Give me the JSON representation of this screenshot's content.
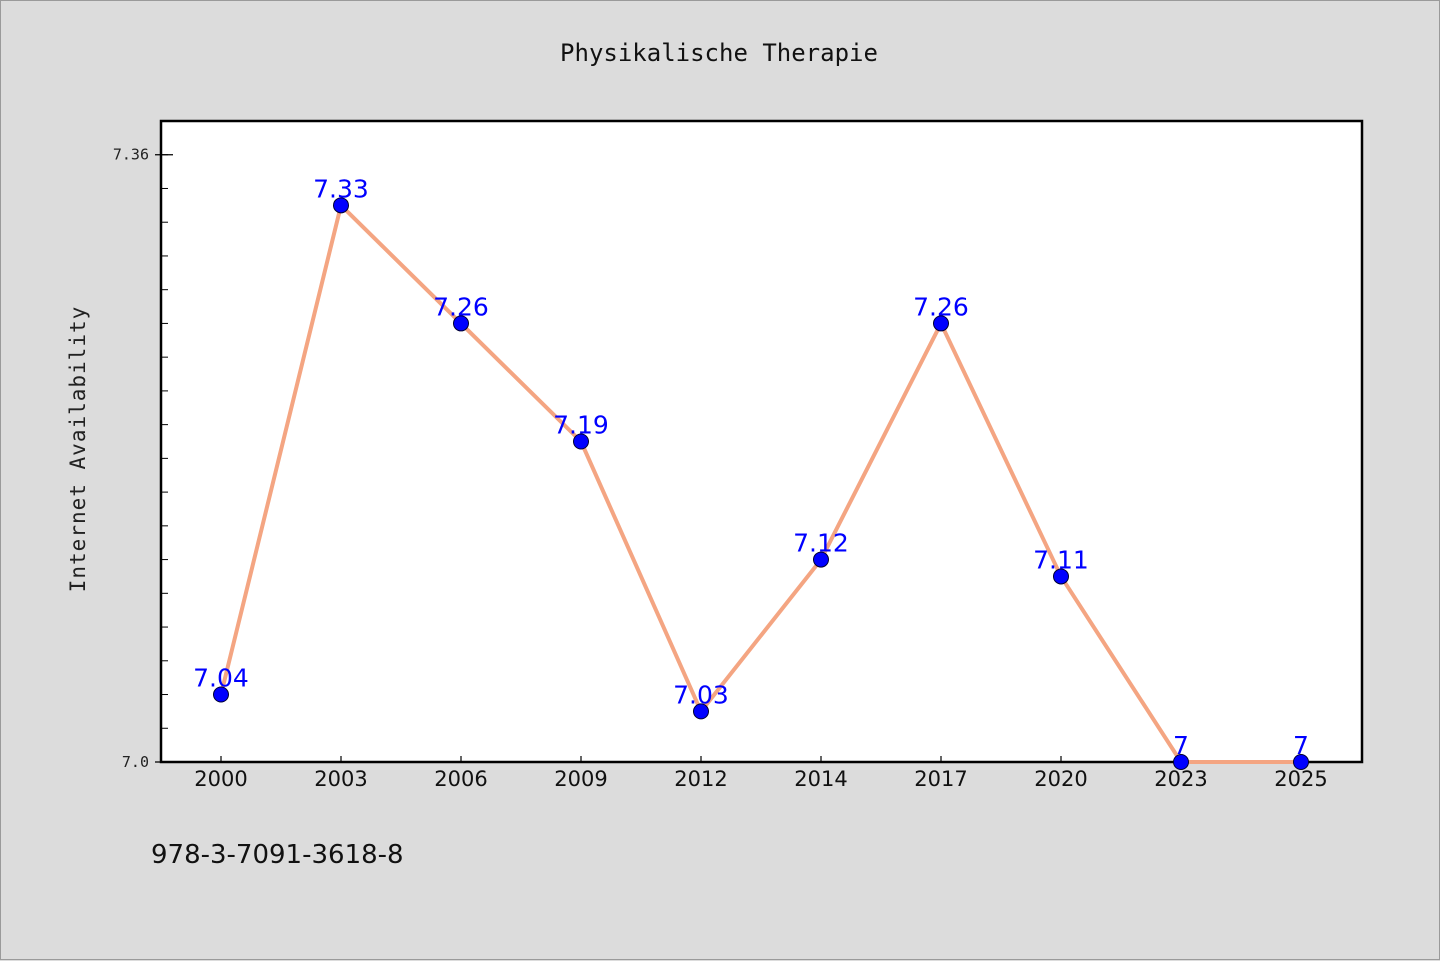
{
  "chart_data": {
    "type": "line",
    "title": "Physikalische Therapie",
    "xlabel": "",
    "ylabel": "Internet Availability",
    "categories": [
      "2000",
      "2003",
      "2006",
      "2009",
      "2012",
      "2014",
      "2017",
      "2020",
      "2023",
      "2025"
    ],
    "series": [
      {
        "values": [
          7.04,
          7.33,
          7.26,
          7.19,
          7.03,
          7.12,
          7.26,
          7.11,
          7,
          7
        ],
        "labels": [
          "7.04",
          "7.33",
          "7.26",
          "7.19",
          "7.03",
          "7.12",
          "7.26",
          "7.11",
          "7",
          "7"
        ]
      }
    ],
    "yticks": [
      {
        "value": 7.0,
        "label": "7.0"
      },
      {
        "value": 7.36,
        "label": "7.36"
      }
    ],
    "ylim": [
      7.0,
      7.38
    ],
    "grid": false,
    "colors": {
      "line": "#f4a582",
      "marker": "#0000ff",
      "label": "#0000ff"
    }
  },
  "footer": {
    "isbn": "978-3-7091-3618-8"
  }
}
